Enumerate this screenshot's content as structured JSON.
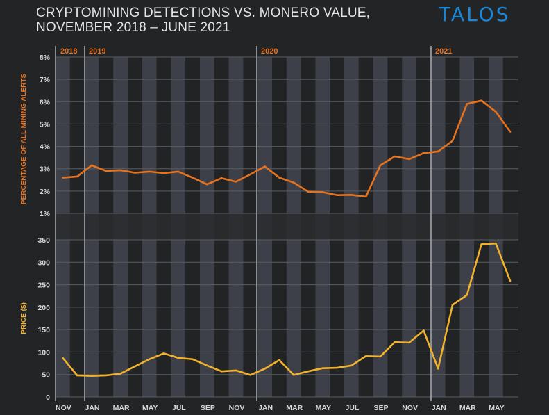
{
  "header": {
    "title_line1": "CRYPTOMINING DETECTIONS VS. MONERO VALUE,",
    "title_line2": "NOVEMBER 2018 – JUNE 2021",
    "logo": "TALOS"
  },
  "colors": {
    "detections": "#e8731f",
    "price": "#f2b22c",
    "logo": "#1b87d6"
  },
  "chart_data": [
    {
      "type": "line",
      "title": "Cryptomining detections",
      "ylabel": "PERCENTAGE OF ALL MINING ALERTS",
      "ylim": [
        1,
        8
      ],
      "yticks": [
        "1%",
        "2%",
        "3%",
        "4%",
        "5%",
        "6%",
        "7%",
        "8%"
      ],
      "years": [
        "2018",
        "2019",
        "2020",
        "2021"
      ],
      "x": [
        "Nov 2018",
        "Dec 2018",
        "Jan 2019",
        "Feb 2019",
        "Mar 2019",
        "Apr 2019",
        "May 2019",
        "Jun 2019",
        "Jul 2019",
        "Aug 2019",
        "Sep 2019",
        "Oct 2019",
        "Nov 2019",
        "Dec 2019",
        "Jan 2020",
        "Feb 2020",
        "Mar 2020",
        "Apr 2020",
        "May 2020",
        "Jun 2020",
        "Jul 2020",
        "Aug 2020",
        "Sep 2020",
        "Oct 2020",
        "Nov 2020",
        "Dec 2020",
        "Jan 2021",
        "Feb 2021",
        "Mar 2021",
        "Apr 2021",
        "May 2021",
        "Jun 2021"
      ],
      "values": [
        2.6,
        2.65,
        3.15,
        2.9,
        2.93,
        2.82,
        2.87,
        2.8,
        2.87,
        2.6,
        2.3,
        2.58,
        2.42,
        2.75,
        3.1,
        2.6,
        2.38,
        1.97,
        1.95,
        1.82,
        1.83,
        1.75,
        3.15,
        3.55,
        3.43,
        3.7,
        3.77,
        4.25,
        5.9,
        6.05,
        5.55,
        4.65
      ]
    },
    {
      "type": "line",
      "title": "Monero value",
      "ylabel": "PRICE ($)",
      "ylim": [
        0,
        350
      ],
      "yticks": [
        "0",
        "50",
        "100",
        "150",
        "200",
        "250",
        "300",
        "350"
      ],
      "xtick_labels": [
        "NOV",
        "JAN",
        "MAR",
        "MAY",
        "JUL",
        "SEP",
        "NOV",
        "JAN",
        "MAR",
        "MAY",
        "JUL",
        "SEP",
        "NOV",
        "JAN",
        "MAR",
        "MAY"
      ],
      "values": [
        87,
        48,
        47,
        48,
        52,
        68,
        84,
        97,
        87,
        84,
        70,
        57,
        59,
        49,
        63,
        82,
        49,
        57,
        64,
        65,
        70,
        91,
        90,
        122,
        121,
        148,
        63,
        205,
        227,
        340,
        342,
        258
      ]
    }
  ]
}
